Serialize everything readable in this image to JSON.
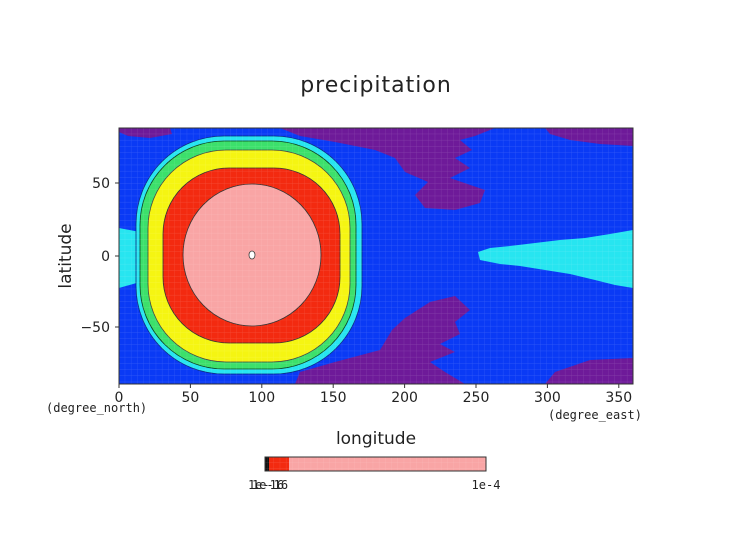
{
  "chart_data": {
    "type": "heatmap",
    "title": "precipitation",
    "xlabel": "longitude",
    "ylabel": "latitude",
    "x_unit": "(degree_east)",
    "y_unit": "(degree_north)",
    "xlim": [
      0,
      360
    ],
    "ylim": [
      -90,
      90
    ],
    "x_ticks": [
      "0",
      "50",
      "100",
      "150",
      "200",
      "250",
      "300",
      "350"
    ],
    "y_ticks": [
      "50",
      "0",
      "−50"
    ],
    "contour_levels": [
      {
        "level": "background",
        "color": "#0a3af5"
      },
      {
        "level": 1,
        "color": "#27e5f0"
      },
      {
        "level": 2,
        "color": "#3ce06b"
      },
      {
        "level": 3,
        "color": "#f5f512"
      },
      {
        "level": 4,
        "color": "#f32a10"
      },
      {
        "level": 5,
        "color": "#f9a5a5"
      }
    ],
    "low_region_color": "#6e1a99",
    "colorbar": {
      "labels": [
        "1e-16",
        "1e-4"
      ],
      "stacked_left_label": "1e-16",
      "colors": [
        "#111111",
        "#f32a10",
        "#f9a5a5"
      ]
    }
  }
}
